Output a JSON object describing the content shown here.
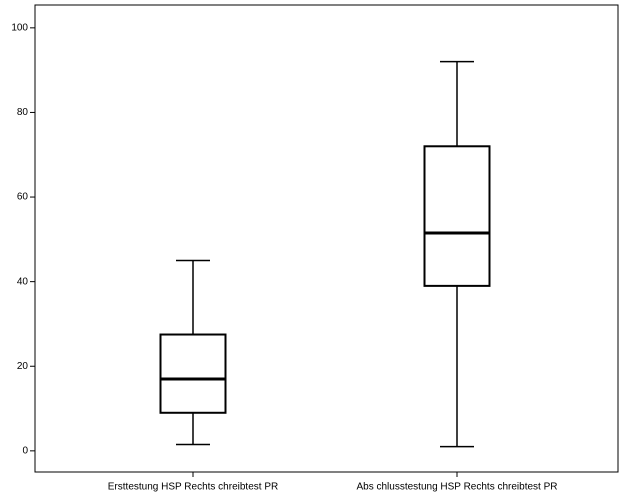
{
  "chart_data": {
    "type": "box",
    "categories": [
      "Ersttestung HSP Rechts chreibtest PR",
      "Abs chlusstestung HSP Rechts chreibtest PR"
    ],
    "boxes": [
      {
        "min": 1.5,
        "q1": 9,
        "median": 17,
        "q3": 27.5,
        "max": 45
      },
      {
        "min": 1,
        "q1": 39,
        "median": 51.5,
        "q3": 72,
        "max": 92
      }
    ],
    "color": "#ffffff",
    "ylim": [
      -5,
      105.4
    ],
    "yticks": [
      0,
      20,
      40,
      60,
      80,
      100
    ]
  }
}
